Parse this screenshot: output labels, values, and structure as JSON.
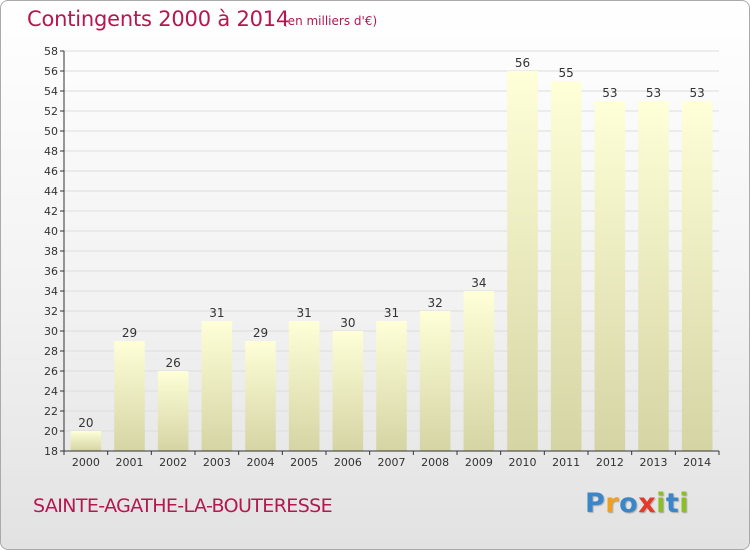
{
  "header": {
    "title": "Contingents 2000 à 2014",
    "unit": "(en milliers d'€)"
  },
  "footer": {
    "commune": "SAINTE-AGATHE-LA-BOUTERESSE",
    "logo_text": "Proxiti",
    "logo_letters": [
      {
        "char": "P",
        "color": "#3a86c8"
      },
      {
        "char": "r",
        "color": "#f0a020"
      },
      {
        "char": "o",
        "color": "#3a86c8"
      },
      {
        "char": "x",
        "color": "#e53a2a"
      },
      {
        "char": "i",
        "color": "#8cbf26"
      },
      {
        "char": "t",
        "color": "#3a86c8"
      },
      {
        "char": "i",
        "color": "#8cbf26"
      }
    ]
  },
  "colors": {
    "title": "#b5174f",
    "bar_top": "#ffffd8",
    "bar_bottom": "#d4d4a4",
    "gridline": "#dddddd",
    "axis": "#333333"
  },
  "chart_data": {
    "type": "bar",
    "title": "Contingents 2000 à 2014",
    "subtitle": "(en milliers d'€)",
    "xlabel": "",
    "ylabel": "",
    "categories": [
      "2000",
      "2001",
      "2002",
      "2003",
      "2004",
      "2005",
      "2006",
      "2007",
      "2008",
      "2009",
      "2010",
      "2011",
      "2012",
      "2013",
      "2014"
    ],
    "values": [
      20,
      29,
      26,
      31,
      29,
      31,
      30,
      31,
      32,
      34,
      56,
      55,
      53,
      53,
      53
    ],
    "ylim": [
      18,
      58
    ],
    "ytick_step": 2,
    "grid": true,
    "legend": "none",
    "data_labels": true
  }
}
